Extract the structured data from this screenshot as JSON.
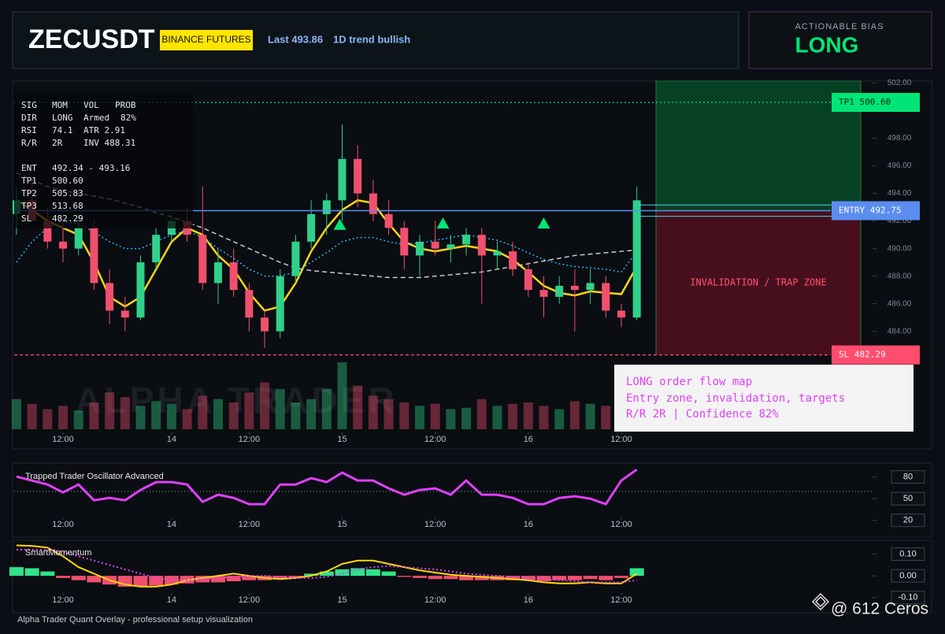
{
  "header": {
    "symbol": "ZECUSDT",
    "exchange": "BINANCE FUTURES",
    "last": "Last 493.86",
    "trend": "1D trend bullish"
  },
  "bias": {
    "label": "ACTIONABLE BIAS",
    "value": "LONG"
  },
  "panel": {
    "rows": [
      [
        "SIG",
        "MOM",
        "VOL",
        "PROB"
      ],
      [
        "DIR",
        "LONG",
        "Armed",
        "82%"
      ],
      [
        "RSI",
        "74.1",
        "ATR 2.91"
      ],
      [
        "R/R",
        "2R",
        "INV 488.31"
      ]
    ],
    "levels": [
      [
        "ENT",
        "492.34 - 493.16"
      ],
      [
        "TP1",
        "500.60"
      ],
      [
        "TP2",
        "505.83"
      ],
      [
        "TP3",
        "513.68"
      ],
      [
        "SL",
        "482.29"
      ]
    ]
  },
  "annotation": [
    "LONG order flow map",
    "Entry zone, invalidation, targets",
    "R/R 2R | Confidence 82%"
  ],
  "watermark": "ALPHA TRADER",
  "footer": "Alpha Trader Quant Overlay - professional setup visualization",
  "credit": "@ 612 Ceros",
  "chart_data": [
    {
      "type": "candlestick",
      "x": [
        -6,
        -4,
        -2,
        0,
        2,
        4,
        6,
        8,
        10,
        12,
        14,
        16,
        18,
        20,
        22,
        24,
        26,
        28,
        30,
        32,
        34,
        36,
        38,
        40,
        42,
        44,
        46,
        48,
        50,
        52,
        54,
        56,
        58,
        60,
        62,
        64,
        66,
        68,
        70,
        72,
        74
      ],
      "open": [
        492.5,
        493.5,
        492,
        490.5,
        490,
        491.5,
        487.5,
        485.5,
        485,
        489,
        491,
        492,
        491,
        487.5,
        489,
        487,
        485,
        484,
        488,
        490.5,
        492.5,
        493.5,
        496.5,
        494,
        492.5,
        491.5,
        489.5,
        490.5,
        490,
        490.3,
        491,
        489.5,
        489.8,
        488.5,
        487,
        486.5,
        487.3,
        487,
        487.5,
        485.5,
        485
      ],
      "high": [
        494.5,
        495,
        493,
        492,
        492.5,
        492,
        488.5,
        486.5,
        489.5,
        491.5,
        492.5,
        493,
        494.5,
        490,
        490,
        487.5,
        485.5,
        488.5,
        491,
        493.5,
        494,
        499,
        497.5,
        495,
        493.5,
        492,
        491,
        492,
        491,
        491.5,
        491.5,
        490.5,
        490.5,
        489,
        488,
        488,
        488.5,
        488.5,
        488,
        486,
        494.5
      ],
      "low": [
        491,
        492,
        490,
        489,
        489.5,
        487,
        484.5,
        484,
        484.8,
        488.5,
        490.5,
        490.5,
        487,
        486,
        486.5,
        484,
        482.8,
        483.5,
        487.5,
        490,
        491,
        492,
        493,
        492,
        491,
        488.5,
        488,
        489.5,
        489,
        489.5,
        486,
        488.5,
        488,
        486.5,
        485,
        486,
        484,
        486,
        485,
        484.3,
        484.8
      ],
      "close": [
        493.5,
        492,
        490.5,
        490,
        491.5,
        487.5,
        485.5,
        485,
        489,
        491,
        492,
        491,
        487.5,
        489,
        487,
        485,
        484,
        488,
        490.5,
        492.5,
        493.5,
        496.5,
        494,
        492.5,
        491.5,
        489.5,
        490.5,
        490,
        490.3,
        491,
        489.5,
        489.8,
        488.5,
        487,
        486.5,
        487.3,
        487,
        487.5,
        485.5,
        485,
        493.5
      ],
      "volume": [
        45,
        38,
        30,
        35,
        28,
        40,
        55,
        48,
        35,
        42,
        38,
        30,
        50,
        45,
        40,
        55,
        70,
        60,
        40,
        45,
        60,
        100,
        65,
        50,
        45,
        40,
        35,
        38,
        30,
        32,
        45,
        35,
        38,
        40,
        35,
        30,
        42,
        38,
        35,
        40,
        90
      ],
      "volume_lim": [
        0,
        100
      ],
      "up_color": "#2fd18a",
      "down_color": "#f0506e",
      "overlays": [
        {
          "color": "#ffd60a",
          "values": [
            493.5,
            492.8,
            492,
            491.5,
            491,
            489,
            486.5,
            485.8,
            486.5,
            488.5,
            490.5,
            491.5,
            491,
            489.5,
            488.5,
            486.8,
            485.5,
            485.8,
            487.5,
            489.8,
            491.5,
            492.8,
            493.5,
            493.3,
            491.8,
            490.5,
            490,
            489.8,
            490,
            490.2,
            490,
            489.8,
            489.2,
            488.3,
            487.3,
            486.8,
            486.6,
            486.9,
            486.8,
            486.7,
            488.7
          ]
        },
        {
          "color": "#29b6f6",
          "dash": "dotted",
          "values": [
            489,
            490.5,
            491.5,
            492,
            491.8,
            491.2,
            490.5,
            490,
            490,
            490.5,
            491,
            491.3,
            490.8,
            490,
            489.3,
            488.5,
            488,
            488,
            488.3,
            489,
            489.7,
            490.5,
            490.8,
            490.8,
            490.5,
            490.3,
            490.4,
            490.6,
            490.8,
            491,
            490.8,
            490.6,
            490.2,
            489.7,
            489.2,
            488.9,
            488.7,
            488.6,
            488.5,
            488.3,
            489.8
          ]
        },
        {
          "color": "#c8c8c8",
          "dash": "dashed",
          "values": [
            495.5,
            495,
            494.5,
            494.2,
            494,
            493.8,
            493.6,
            493.3,
            493,
            492.6,
            492.3,
            491.9,
            491.5,
            491,
            490.5,
            490,
            489.5,
            489,
            488.6,
            488.4,
            488.3,
            488.2,
            488.1,
            488,
            487.9,
            487.9,
            487.9,
            488,
            488.1,
            488.2,
            488.3,
            488.5,
            488.7,
            488.9,
            489.1,
            489.3,
            489.5,
            489.6,
            489.7,
            489.8,
            489.9
          ]
        }
      ],
      "signals": {
        "x": [
          35.7,
          49,
          62
        ],
        "values": [
          491.7,
          491.8,
          491.8
        ],
        "color": "#00e676"
      },
      "levels": [
        {
          "label": "TP1 500.60",
          "value": 500.6,
          "color": "#00e676"
        },
        {
          "label": "ENTRY 492.75",
          "value": 492.75,
          "color": "#5b8def"
        },
        {
          "label": "SL 482.29",
          "value": 482.29,
          "color": "#ff4d6d"
        }
      ],
      "entry_zone": [
        492.34,
        493.16
      ],
      "zone_text": "INVALIDATION / TRAP ZONE",
      "xlim": [
        -6.3,
        104.4
      ],
      "ylim": [
        476.9,
        502.2
      ],
      "xticks": [
        {
          "value": 0,
          "label": "12:00"
        },
        14,
        {
          "value": 24,
          "label": "12:00"
        },
        {
          "value": 36,
          "label": "15"
        },
        {
          "value": 48,
          "label": "12:00"
        },
        {
          "value": 60,
          "label": "16"
        },
        {
          "value": 72,
          "label": "12:00"
        }
      ],
      "yticks": [
        {
          "value": 484,
          "label": "484.00"
        },
        {
          "value": 486,
          "label": "486.00"
        },
        {
          "value": 488,
          "label": "488.00"
        },
        {
          "value": 490,
          "label": "490.00"
        },
        {
          "value": 492,
          "label": "492.00"
        },
        {
          "value": 494,
          "label": "494.00"
        },
        {
          "value": 496,
          "label": "496.00"
        },
        {
          "value": 498,
          "label": "498.00"
        },
        {
          "value": 502,
          "label": "502.00"
        }
      ]
    },
    {
      "type": "line",
      "title": "Trapped Trader Oscillator Advanced",
      "x": [
        -6,
        -4,
        -2,
        0,
        2,
        4,
        6,
        8,
        10,
        12,
        14,
        16,
        18,
        20,
        22,
        24,
        26,
        28,
        30,
        32,
        34,
        36,
        38,
        40,
        42,
        44,
        46,
        48,
        50,
        52,
        54,
        56,
        58,
        60,
        62,
        64,
        66,
        68,
        70,
        72,
        74
      ],
      "values": [
        80.5,
        75,
        69.6,
        58.7,
        69.6,
        47.8,
        51.1,
        47.8,
        62,
        72.9,
        72.9,
        69.6,
        45.6,
        55.5,
        51.1,
        42.4,
        42.4,
        69.6,
        69.6,
        78.4,
        72.9,
        86,
        75.1,
        75.1,
        64.2,
        55.5,
        62,
        64.2,
        55.5,
        75.1,
        55.5,
        55.5,
        51.1,
        42.4,
        42.4,
        51.1,
        53.3,
        50,
        42.4,
        75.1,
        90.3
      ],
      "color": "#e040fb",
      "ref_line": 60,
      "xlim": [
        -6.3,
        104.4
      ],
      "ylim": [
        -1,
        97
      ],
      "xticks": [
        {
          "value": 0,
          "label": "12:00"
        },
        14,
        {
          "value": 24,
          "label": "12:00"
        },
        {
          "value": 36,
          "label": "15"
        },
        {
          "value": 48,
          "label": "12:00"
        },
        {
          "value": 60,
          "label": "16"
        },
        {
          "value": 72,
          "label": "12:00"
        }
      ],
      "yticks": [
        80,
        50,
        20
      ]
    },
    {
      "type": "bar",
      "title": "SmartMomentum",
      "x": [
        -6,
        -4,
        -2,
        0,
        2,
        4,
        6,
        8,
        10,
        12,
        14,
        16,
        18,
        20,
        22,
        24,
        26,
        28,
        30,
        32,
        34,
        36,
        38,
        40,
        42,
        44,
        46,
        48,
        50,
        52,
        54,
        56,
        58,
        60,
        62,
        64,
        66,
        68,
        70,
        72,
        74
      ],
      "values": [
        0.04,
        0.035,
        0.02,
        -0.01,
        -0.02,
        -0.03,
        -0.04,
        -0.05,
        -0.05,
        -0.045,
        -0.04,
        -0.035,
        -0.03,
        -0.03,
        -0.025,
        -0.02,
        -0.02,
        -0.015,
        -0.01,
        0.01,
        0.02,
        0.03,
        0.035,
        0.03,
        0.02,
        -0.005,
        -0.01,
        -0.015,
        -0.015,
        -0.02,
        -0.02,
        -0.02,
        -0.02,
        -0.02,
        -0.025,
        -0.02,
        -0.02,
        -0.015,
        -0.02,
        -0.01,
        0.035
      ],
      "up_color": "#2fe38a",
      "down_color": "#f0506e",
      "lines": [
        {
          "color": "#ffd60a",
          "values": [
            0.14,
            0.138,
            0.13,
            0.09,
            0.04,
            0.01,
            -0.02,
            -0.04,
            -0.05,
            -0.05,
            -0.04,
            -0.02,
            -0.01,
            0,
            0.01,
            0,
            -0.01,
            -0.015,
            -0.01,
            0,
            0.02,
            0.055,
            0.07,
            0.07,
            0.055,
            0.04,
            0.025,
            0.015,
            0.005,
            0,
            -0.005,
            -0.01,
            -0.015,
            -0.02,
            -0.03,
            -0.035,
            -0.035,
            -0.03,
            -0.035,
            -0.035,
            0.01
          ]
        },
        {
          "color": "#e040fb",
          "dash": "dotted",
          "values": [
            0.12,
            0.12,
            0.12,
            0.11,
            0.09,
            0.07,
            0.05,
            0.03,
            0.01,
            -0.01,
            -0.02,
            -0.02,
            -0.015,
            -0.01,
            -0.005,
            0,
            0,
            -0.005,
            -0.01,
            -0.01,
            -0.005,
            0.01,
            0.03,
            0.04,
            0.045,
            0.04,
            0.035,
            0.03,
            0.02,
            0.01,
            0.005,
            0,
            -0.005,
            -0.01,
            -0.015,
            -0.02,
            -0.025,
            -0.03,
            -0.03,
            -0.03,
            -0.02
          ]
        }
      ],
      "xlim": [
        -6.3,
        104.4
      ],
      "ylim": [
        -0.13,
        0.16
      ],
      "xticks": [
        {
          "value": 0,
          "label": "12:00"
        },
        14,
        {
          "value": 24,
          "label": "12:00"
        },
        {
          "value": 36,
          "label": "15"
        },
        {
          "value": 48,
          "label": "12:00"
        },
        {
          "value": 60,
          "label": "16"
        },
        {
          "value": 72,
          "label": "12:00"
        }
      ],
      "yticks": [
        {
          "value": 0.1,
          "label": "0.10"
        },
        {
          "value": 0,
          "label": "0.00"
        },
        {
          "value": -0.1,
          "label": "-0.10"
        }
      ]
    }
  ]
}
